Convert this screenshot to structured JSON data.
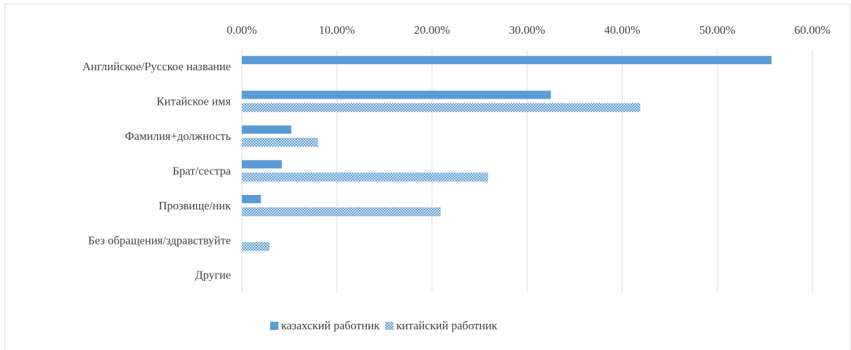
{
  "chart_data": {
    "type": "hbar",
    "categories": [
      "Английское/Русское название",
      "Китайское имя",
      "Фамилия+должность",
      "Брат/сестра",
      "Прозвище/ник",
      "Без обращения/здравствуйте",
      "Другие"
    ],
    "series": [
      {
        "name": "казахский работник",
        "color": "#5b9bd5",
        "pattern": "solid",
        "values": [
          55.7,
          32.5,
          5.2,
          4.2,
          2.0,
          0,
          0
        ]
      },
      {
        "name": "китайский работник",
        "color": "#5b9bd5",
        "pattern": "crosshatch",
        "values": [
          0,
          41.9,
          8.0,
          25.9,
          20.9,
          2.9,
          0
        ]
      }
    ],
    "xlim": [
      0,
      60
    ],
    "xticks": [
      {
        "value": 0,
        "label": "0.00%"
      },
      {
        "value": 10,
        "label": "10.00%"
      },
      {
        "value": 20,
        "label": "20.00%"
      },
      {
        "value": 30,
        "label": "30.00%"
      },
      {
        "value": 40,
        "label": "40.00%"
      },
      {
        "value": 50,
        "label": "50.00%"
      },
      {
        "value": 60,
        "label": "60.00%"
      }
    ],
    "grid": true,
    "legend": "bottom"
  }
}
